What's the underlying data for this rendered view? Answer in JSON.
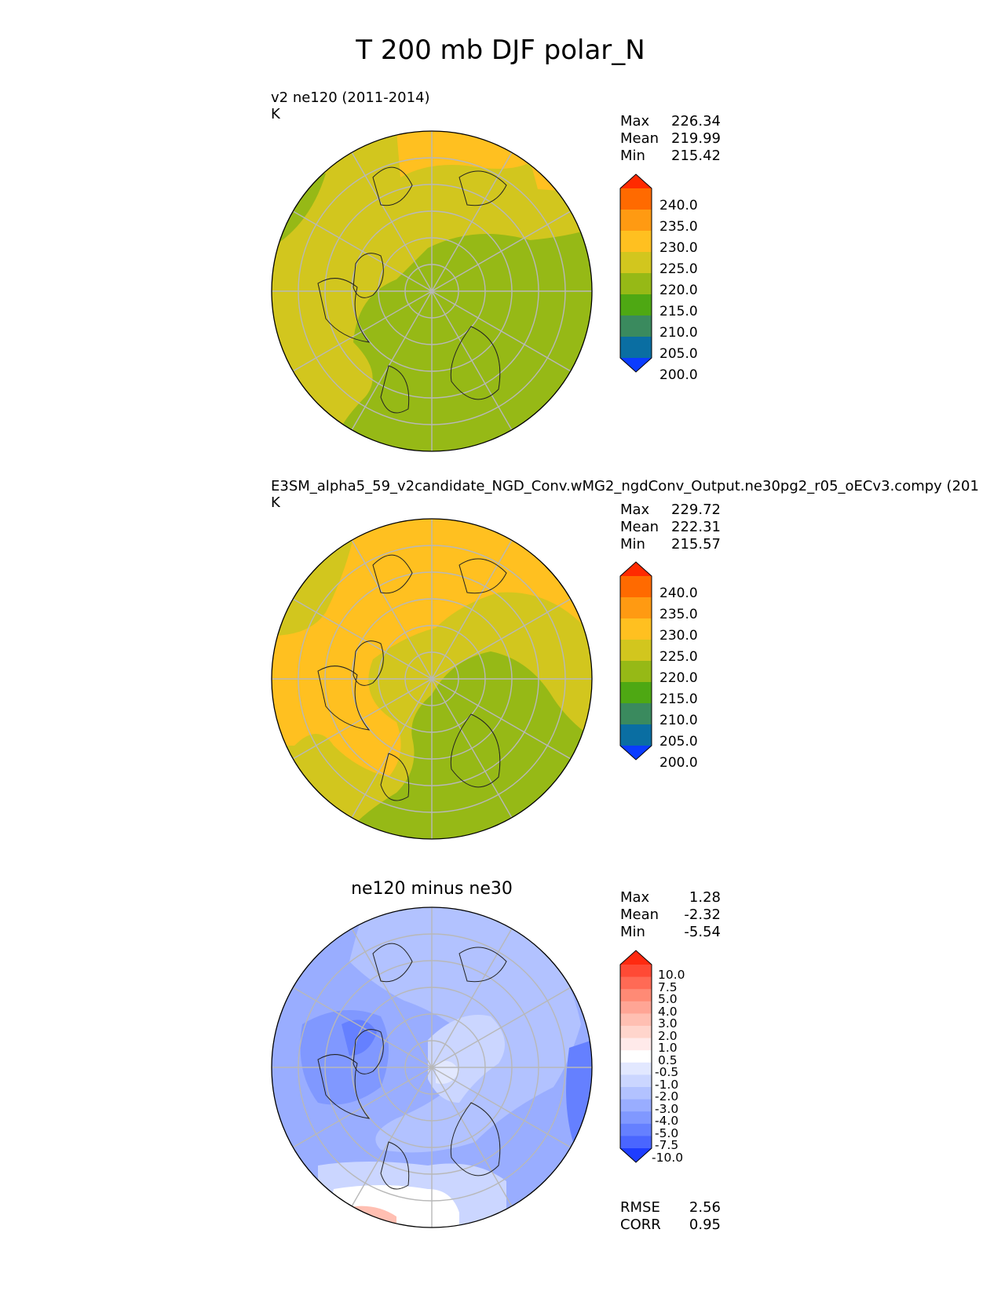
{
  "page": {
    "title": "T 200 mb DJF polar_N"
  },
  "panels": [
    {
      "id": "test",
      "title_line1": "v2 ne120 (2011-2014)",
      "title_line2": "K",
      "stats": [
        {
          "label": "Max",
          "value": "226.34"
        },
        {
          "label": "Mean",
          "value": "219.99"
        },
        {
          "label": "Min",
          "value": "215.42"
        }
      ]
    },
    {
      "id": "reference",
      "title_line1": "E3SM_alpha5_59_v2candidate_NGD_Conv.wMG2_ngdConv_Output.ne30pg2_r05_oECv3.compy (201",
      "title_line2": "K",
      "stats": [
        {
          "label": "Max",
          "value": "229.72"
        },
        {
          "label": "Mean",
          "value": "222.31"
        },
        {
          "label": "Min",
          "value": "215.57"
        }
      ]
    },
    {
      "id": "difference",
      "title_center": "ne120 minus ne30",
      "stats": [
        {
          "label": "Max",
          "value": "1.28"
        },
        {
          "label": "Mean",
          "value": "-2.32"
        },
        {
          "label": "Min",
          "value": "-5.54"
        }
      ],
      "metrics": [
        {
          "label": "RMSE",
          "value": "2.56"
        },
        {
          "label": "CORR",
          "value": "0.95"
        }
      ]
    }
  ],
  "colorbars": {
    "absolute": {
      "ticks": [
        "240.0",
        "235.0",
        "230.0",
        "225.0",
        "220.0",
        "215.0",
        "210.0",
        "205.0",
        "200.0"
      ],
      "colors": [
        "#ff2a00",
        "#ff6a00",
        "#ff9a12",
        "#ffc020",
        "#d2c61e",
        "#96b916",
        "#4ea813",
        "#3a8a5e",
        "#0a6ea2",
        "#0a3cff"
      ]
    },
    "difference": {
      "ticks": [
        "10.0",
        "7.5",
        "5.0",
        "4.0",
        "3.0",
        "2.0",
        "1.0",
        "0.5",
        "-0.5",
        "-1.0",
        "-2.0",
        "-3.0",
        "-4.0",
        "-5.0",
        "-7.5",
        "-10.0"
      ],
      "colors": [
        "#ff2a10",
        "#ff4a35",
        "#ff6a55",
        "#ff8a75",
        "#ffa595",
        "#ffbfb2",
        "#ffd5cc",
        "#ffeaea",
        "#ffffff",
        "#e2e8ff",
        "#cbd6ff",
        "#b2c2ff",
        "#99adff",
        "#8098ff",
        "#6580ff",
        "#4a66ff",
        "#1e3dff"
      ]
    }
  },
  "chart_data": [
    {
      "type": "heatmap",
      "projection": "polar_N",
      "title": "v2 ne120 (2011-2014)",
      "units": "K",
      "levels": [
        200,
        205,
        210,
        215,
        220,
        225,
        230,
        235,
        240
      ],
      "extend": "both",
      "regions": [
        {
          "range": "215-220",
          "where": "central Arctic, Siberia and Pacific sector"
        },
        {
          "range": "220-225",
          "where": "North America, North Atlantic, Europe rim"
        },
        {
          "range": "225-230",
          "where": "northern rim (Alaska/Pacific) and far north-east edge"
        },
        {
          "range": "215-220",
          "where": "small patch at far left (Europe)"
        }
      ],
      "max": 226.34,
      "mean": 219.99,
      "min": 215.42
    },
    {
      "type": "heatmap",
      "projection": "polar_N",
      "title": "E3SM_alpha5_59_v2candidate_NGD_Conv.wMG2_ngdConv_Output.ne30pg2_r05_oECv3.compy (201",
      "units": "K",
      "levels": [
        200,
        205,
        210,
        215,
        220,
        225,
        230,
        235,
        240
      ],
      "extend": "both",
      "regions": [
        {
          "range": "215-220",
          "where": "Siberia and central Arctic toward Asia"
        },
        {
          "range": "220-225",
          "where": "North Atlantic, Greenland and rim"
        },
        {
          "range": "225-230",
          "where": "North America, Pacific and north-west arc"
        }
      ],
      "max": 229.72,
      "mean": 222.31,
      "min": 215.57
    },
    {
      "type": "heatmap",
      "projection": "polar_N",
      "title": "ne120 minus ne30",
      "levels": [
        -10,
        -7.5,
        -5,
        -4,
        -3,
        -2,
        -1,
        -0.5,
        0.5,
        1,
        2,
        3,
        4,
        5,
        7.5,
        10
      ],
      "extend": "both",
      "regions": [
        {
          "range": "-4 to -3",
          "where": "North America / Canadian Archipelago"
        },
        {
          "range": "-3 to -2",
          "where": "broad ring around Arctic, edges"
        },
        {
          "range": "-2 to -0.5",
          "where": "central Arctic and Siberia"
        },
        {
          "range": "-0.5 to 0.5",
          "where": "Europe / North Atlantic near bottom"
        },
        {
          "range": "0.5 to 2",
          "where": "small patch at bottom-left rim"
        }
      ],
      "max": 1.28,
      "mean": -2.32,
      "min": -5.54,
      "rmse": 2.56,
      "corr": 0.95
    }
  ]
}
